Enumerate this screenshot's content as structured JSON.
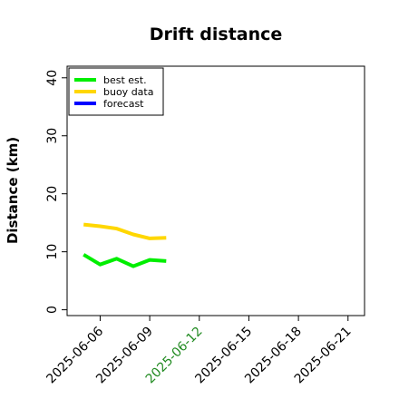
{
  "chart_data": {
    "type": "line",
    "title": "Drift distance",
    "xlabel": "",
    "ylabel": "Distance (km)",
    "x_axis": {
      "type": "date",
      "range": [
        "2025-06-04",
        "2025-06-22"
      ],
      "tick_labels": [
        "2025-06-06",
        "2025-06-09",
        "2025-06-12",
        "2025-06-15",
        "2025-06-18",
        "2025-06-21"
      ],
      "highlighted_tick": "2025-06-12",
      "highlight_color": "#228B22"
    },
    "y_axis": {
      "range": [
        -1,
        42
      ],
      "ticks": [
        0,
        10,
        20,
        30,
        40
      ]
    },
    "grid": false,
    "legend": {
      "placement": "top-left",
      "entries": [
        "best est.",
        "buoy data",
        "forecast"
      ]
    },
    "series": [
      {
        "name": "best est.",
        "color": "#00ee00",
        "points": [
          {
            "x": "2025-06-05",
            "y": 9.5
          },
          {
            "x": "2025-06-06",
            "y": 7.8
          },
          {
            "x": "2025-06-07",
            "y": 8.8
          },
          {
            "x": "2025-06-08",
            "y": 7.5
          },
          {
            "x": "2025-06-09",
            "y": 8.6
          },
          {
            "x": "2025-06-10",
            "y": 8.4
          }
        ]
      },
      {
        "name": "buoy data",
        "color": "#ffd700",
        "points": [
          {
            "x": "2025-06-05",
            "y": 14.7
          },
          {
            "x": "2025-06-06",
            "y": 14.4
          },
          {
            "x": "2025-06-07",
            "y": 14.0
          },
          {
            "x": "2025-06-08",
            "y": 13.0
          },
          {
            "x": "2025-06-09",
            "y": 12.3
          },
          {
            "x": "2025-06-10",
            "y": 12.4
          }
        ]
      },
      {
        "name": "forecast",
        "color": "#0000ff",
        "points": []
      }
    ]
  }
}
